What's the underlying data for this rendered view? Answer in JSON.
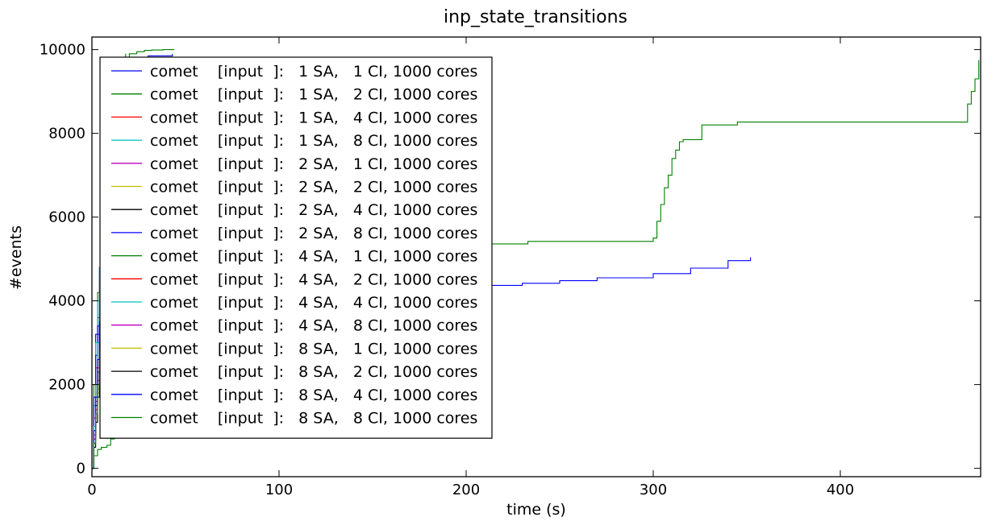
{
  "chart_data": {
    "type": "line",
    "title": "inp_state_transitions",
    "xlabel": "time (s)",
    "ylabel": "#events",
    "xlim": [
      0,
      475
    ],
    "ylim": [
      -200,
      10300
    ],
    "xticks": [
      0,
      100,
      200,
      300,
      400
    ],
    "yticks": [
      0,
      2000,
      4000,
      6000,
      8000,
      10000
    ],
    "grid": false,
    "legend_position": "upper-left",
    "series": [
      {
        "name": "comet    [input  ]:   1 SA,   1 CI, 1000 cores",
        "color": "#0000ff",
        "x": [
          0,
          1,
          2,
          4,
          6,
          8,
          10,
          12,
          14,
          16,
          18,
          20
        ],
        "y": [
          0,
          1500,
          3200,
          4800,
          6000,
          7000,
          7800,
          8500,
          9000,
          9400,
          9700,
          9800
        ]
      },
      {
        "name": "comet    [input  ]:   1 SA,   2 CI, 1000 cores",
        "color": "#008000",
        "x": [
          0,
          1,
          3,
          5,
          8,
          10,
          12,
          14,
          16,
          18,
          20,
          24,
          28,
          32,
          38,
          44
        ],
        "y": [
          0,
          2000,
          4200,
          5800,
          7000,
          7800,
          8500,
          9100,
          9500,
          9800,
          9900,
          9950,
          9980,
          9990,
          10000,
          10000
        ]
      },
      {
        "name": "comet    [input  ]:   1 SA,   4 CI, 1000 cores",
        "color": "#ff0000",
        "x": [
          0,
          1,
          2,
          3,
          4,
          6,
          8,
          10,
          12,
          14,
          16,
          18
        ],
        "y": [
          0,
          1200,
          2400,
          3600,
          4500,
          6000,
          7200,
          8100,
          8800,
          9300,
          9600,
          9800
        ]
      },
      {
        "name": "comet    [input  ]:   1 SA,   8 CI, 1000 cores",
        "color": "#00bfbf",
        "x": [
          0,
          1,
          2,
          3,
          4,
          6,
          8,
          10,
          12,
          14,
          16
        ],
        "y": [
          0,
          1500,
          3000,
          4000,
          4800,
          6100,
          7200,
          8200,
          8900,
          9400,
          9700
        ]
      },
      {
        "name": "comet    [input  ]:   2 SA,   1 CI, 1000 cores",
        "color": "#bf00bf",
        "x": [
          0,
          1,
          2,
          3,
          5,
          7,
          9,
          11,
          13,
          15,
          17,
          19,
          22,
          26,
          30
        ],
        "y": [
          0,
          800,
          1700,
          2600,
          4000,
          5200,
          6300,
          7200,
          8000,
          8700,
          9200,
          9500,
          9700,
          9800,
          9800
        ]
      },
      {
        "name": "comet    [input  ]:   2 SA,   2 CI, 1000 cores",
        "color": "#bfbf00",
        "x": [
          0,
          1,
          2,
          4,
          6,
          8,
          10,
          12,
          14,
          16,
          18
        ],
        "y": [
          0,
          900,
          1800,
          3200,
          4600,
          5800,
          6900,
          7800,
          8600,
          9200,
          9700
        ]
      },
      {
        "name": "comet    [input  ]:   2 SA,   4 CI, 1000 cores",
        "color": "#000000",
        "x": [
          0,
          1,
          2,
          3,
          5,
          7,
          9,
          11,
          13,
          15,
          17,
          19
        ],
        "y": [
          0,
          700,
          1500,
          2300,
          3700,
          5000,
          6100,
          7100,
          8000,
          8700,
          9200,
          9600
        ]
      },
      {
        "name": "comet    [input  ]:   2 SA,   8 CI, 1000 cores",
        "color": "#0000ff",
        "x": [
          0,
          1,
          2,
          3,
          4,
          5,
          10,
          20,
          30,
          40,
          60,
          80,
          100,
          120,
          150,
          180,
          210,
          230,
          250,
          270,
          300,
          320,
          340,
          352
        ],
        "y": [
          0,
          1700,
          2700,
          3400,
          3700,
          3850,
          3950,
          4050,
          4100,
          4130,
          4180,
          4210,
          4240,
          4260,
          4290,
          4320,
          4370,
          4420,
          4480,
          4550,
          4650,
          4780,
          4960,
          5040
        ]
      },
      {
        "name": "comet    [input  ]:   4 SA,   1 CI, 1000 cores",
        "color": "#008000",
        "x": [
          0,
          1,
          3,
          5,
          8,
          10,
          12,
          14,
          16,
          20,
          25,
          30,
          40,
          60,
          100,
          150,
          200,
          232,
          233,
          299,
          300,
          302,
          304,
          306,
          308,
          310,
          312,
          314,
          316,
          324,
          326,
          344,
          345,
          466,
          468,
          470,
          472,
          474
        ],
        "y": [
          0,
          300,
          450,
          500,
          550,
          700,
          1500,
          2200,
          3000,
          3800,
          4300,
          4700,
          5000,
          5200,
          5300,
          5350,
          5360,
          5360,
          5420,
          5420,
          5500,
          5900,
          6300,
          6700,
          7000,
          7400,
          7600,
          7800,
          7850,
          7850,
          8200,
          8200,
          8270,
          8270,
          8700,
          9000,
          9300,
          9750
        ]
      },
      {
        "name": "comet    [input  ]:   4 SA,   2 CI, 1000 cores",
        "color": "#ff0000",
        "x": [
          0,
          1,
          2,
          3,
          4,
          5,
          6,
          7,
          8,
          9,
          10,
          12,
          14,
          16
        ],
        "y": [
          0,
          700,
          1400,
          2100,
          2800,
          3400,
          4000,
          4600,
          5200,
          5800,
          6400,
          7600,
          8700,
          9600
        ]
      },
      {
        "name": "comet    [input  ]:   4 SA,   4 CI, 1000 cores",
        "color": "#00bfbf",
        "x": [
          0,
          1,
          2,
          3,
          4,
          5,
          6,
          8,
          10,
          12,
          14,
          16
        ],
        "y": [
          0,
          1000,
          2000,
          3000,
          4050,
          5000,
          5800,
          7100,
          8100,
          8900,
          9400,
          9700
        ]
      },
      {
        "name": "comet    [input  ]:   4 SA,   8 CI, 1000 cores",
        "color": "#bf00bf",
        "x": [
          0,
          1,
          2,
          3,
          4,
          6,
          8,
          10,
          12,
          14,
          16,
          18
        ],
        "y": [
          0,
          800,
          1600,
          2400,
          3200,
          4600,
          5900,
          7000,
          8000,
          8800,
          9400,
          9800
        ]
      },
      {
        "name": "comet    [input  ]:   8 SA,   1 CI, 1000 cores",
        "color": "#bfbf00",
        "x": [
          0,
          1,
          2,
          3,
          4,
          6,
          8,
          10,
          12,
          14,
          16
        ],
        "y": [
          0,
          600,
          1200,
          1900,
          2600,
          4000,
          5300,
          6600,
          7800,
          8800,
          9500
        ]
      },
      {
        "name": "comet    [input  ]:   8 SA,   2 CI, 1000 cores",
        "color": "#000000",
        "x": [
          0,
          1,
          2,
          3,
          4,
          6,
          8,
          10,
          12,
          14,
          16,
          18
        ],
        "y": [
          0,
          500,
          1100,
          1700,
          2300,
          3600,
          4900,
          6100,
          7300,
          8300,
          9100,
          9700
        ]
      },
      {
        "name": "comet    [input  ]:   8 SA,   4 CI, 1000 cores",
        "color": "#0000ff",
        "x": [
          0,
          1,
          2,
          3,
          4,
          5,
          6,
          8,
          10,
          12,
          14,
          16,
          20,
          30,
          43
        ],
        "y": [
          0,
          900,
          1700,
          2600,
          3500,
          4300,
          5000,
          6300,
          7400,
          8300,
          9000,
          9500,
          9700,
          9850,
          9900
        ]
      },
      {
        "name": "comet    [input  ]:   8 SA,   8 CI, 1000 cores",
        "color": "#008000",
        "x": [
          0,
          1,
          2,
          3,
          4,
          6,
          8,
          10,
          12,
          14,
          16,
          18
        ],
        "y": [
          0,
          600,
          1300,
          2000,
          2800,
          4200,
          5600,
          6800,
          7900,
          8800,
          9500,
          9900
        ]
      }
    ]
  }
}
